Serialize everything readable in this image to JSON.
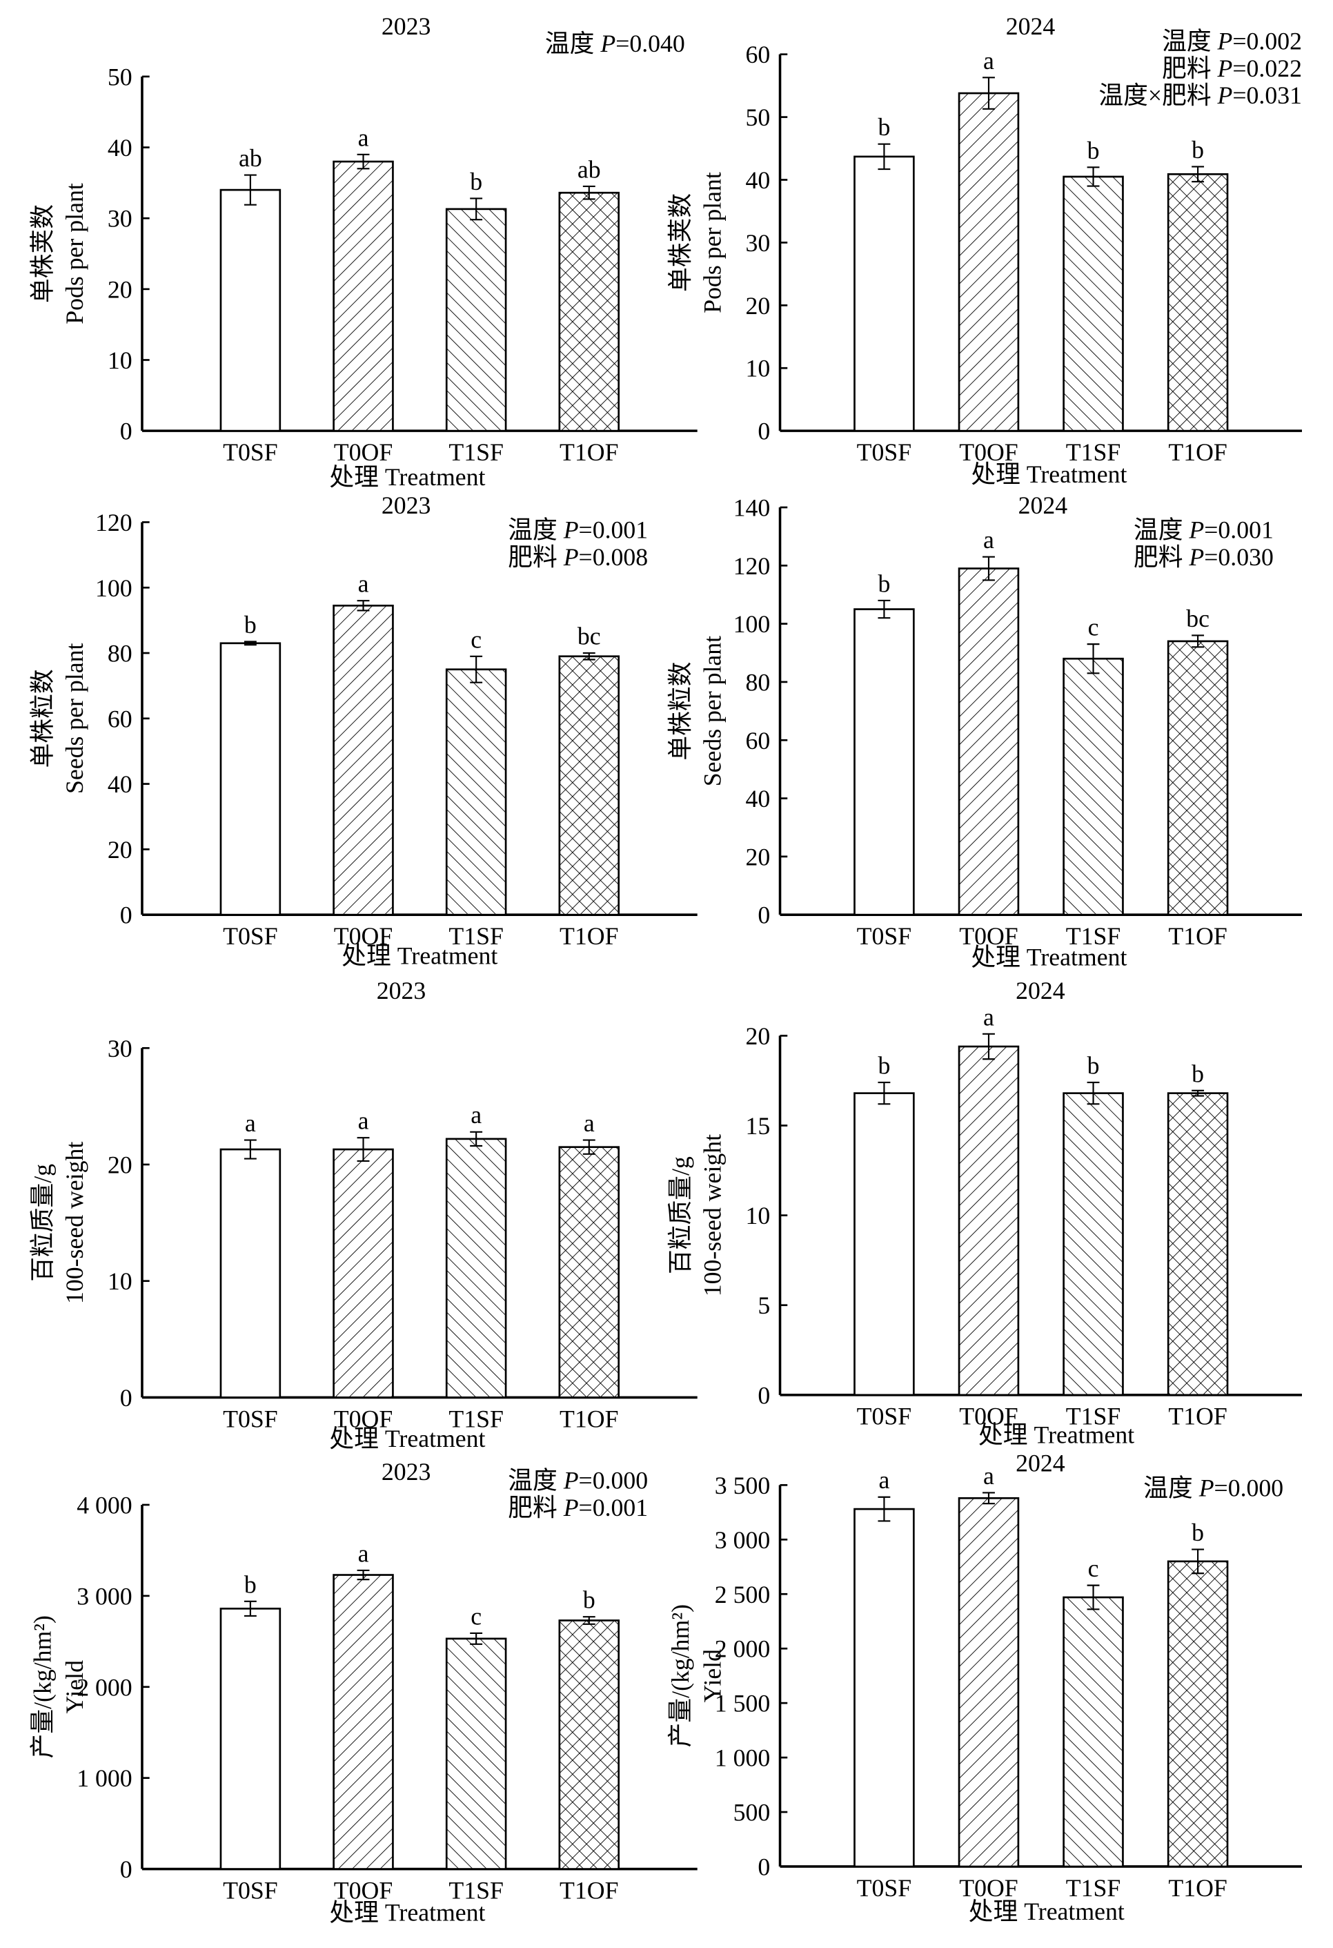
{
  "categories": [
    "T0SF",
    "T0OF",
    "T1SF",
    "T1OF"
  ],
  "xlabel": "处理 Treatment",
  "pattern_order": [
    "none",
    "forward-diagonal",
    "back-diagonal",
    "crosshatch"
  ],
  "colors": {
    "bar_fill": "#ffffff",
    "stroke": "#000000"
  },
  "chart_data": [
    {
      "type": "bar",
      "title": "2023",
      "ylabel": [
        "单株荚数",
        "Pods per plant"
      ],
      "ylim": [
        0,
        50
      ],
      "ticks": [
        0,
        10,
        20,
        30,
        40,
        50
      ],
      "tick_labels": [
        "0",
        "10",
        "20",
        "30",
        "40",
        "50"
      ],
      "values": [
        34.0,
        38.0,
        31.3,
        33.6
      ],
      "errors": [
        2.1,
        1.0,
        1.5,
        0.9
      ],
      "letters": [
        "ab",
        "a",
        "b",
        "ab"
      ],
      "annotations": [
        {
          "factor": "温度",
          "p": "0.040"
        }
      ]
    },
    {
      "type": "bar",
      "title": "2024",
      "ylabel": [
        "单株荚数",
        "Pods per plant"
      ],
      "ylim": [
        0,
        60
      ],
      "ticks": [
        0,
        10,
        20,
        30,
        40,
        50,
        60
      ],
      "tick_labels": [
        "0",
        "10",
        "20",
        "30",
        "40",
        "50",
        "60"
      ],
      "values": [
        43.7,
        53.8,
        40.5,
        40.9
      ],
      "errors": [
        2.0,
        2.5,
        1.5,
        1.2
      ],
      "letters": [
        "b",
        "a",
        "b",
        "b"
      ],
      "annotations": [
        {
          "factor": "温度",
          "p": "0.002"
        },
        {
          "factor": "肥料",
          "p": "0.022"
        },
        {
          "factor": "温度×肥料",
          "p": "0.031"
        }
      ]
    },
    {
      "type": "bar",
      "title": "2023",
      "ylabel": [
        "单株粒数",
        "Seeds per plant"
      ],
      "ylim": [
        0,
        120
      ],
      "ticks": [
        0,
        20,
        40,
        60,
        80,
        100,
        120
      ],
      "tick_labels": [
        "0",
        "20",
        "40",
        "60",
        "80",
        "100",
        "120"
      ],
      "values": [
        83.0,
        94.5,
        75.0,
        79.0
      ],
      "errors": [
        0.5,
        1.5,
        4.0,
        1.0
      ],
      "letters": [
        "b",
        "a",
        "c",
        "bc"
      ],
      "annotations": [
        {
          "factor": "温度",
          "p": "0.001"
        },
        {
          "factor": "肥料",
          "p": "0.008"
        }
      ]
    },
    {
      "type": "bar",
      "title": "2024",
      "ylabel": [
        "单株粒数",
        "Seeds per plant"
      ],
      "ylim": [
        0,
        140
      ],
      "ticks": [
        0,
        20,
        40,
        60,
        80,
        100,
        120,
        140
      ],
      "tick_labels": [
        "0",
        "20",
        "40",
        "60",
        "80",
        "100",
        "120",
        "140"
      ],
      "values": [
        105.0,
        119.0,
        88.0,
        94.0
      ],
      "errors": [
        3.0,
        4.0,
        5.0,
        2.0
      ],
      "letters": [
        "b",
        "a",
        "c",
        "bc"
      ],
      "annotations": [
        {
          "factor": "温度",
          "p": "0.001"
        },
        {
          "factor": "肥料",
          "p": "0.030"
        }
      ]
    },
    {
      "type": "bar",
      "title": "2023",
      "ylabel": [
        "百粒质量/g",
        "100-seed weight"
      ],
      "ylim": [
        0,
        30
      ],
      "ticks": [
        0,
        10,
        20,
        30
      ],
      "tick_labels": [
        "0",
        "10",
        "20",
        "30"
      ],
      "values": [
        21.3,
        21.3,
        22.2,
        21.5
      ],
      "errors": [
        0.8,
        1.0,
        0.6,
        0.6
      ],
      "letters": [
        "a",
        "a",
        "a",
        "a"
      ],
      "annotations": []
    },
    {
      "type": "bar",
      "title": "2024",
      "ylabel": [
        "百粒质量/g",
        "100-seed weight"
      ],
      "ylim": [
        0,
        20
      ],
      "ticks": [
        0,
        5,
        10,
        15,
        20
      ],
      "tick_labels": [
        "0",
        "5",
        "10",
        "15",
        "20"
      ],
      "values": [
        16.8,
        19.4,
        16.8,
        16.8
      ],
      "errors": [
        0.6,
        0.7,
        0.6,
        0.15
      ],
      "letters": [
        "b",
        "a",
        "b",
        "b"
      ],
      "annotations": []
    },
    {
      "type": "bar",
      "title": "2023",
      "ylabel": [
        "产量/(kg/hm²)",
        "Yield"
      ],
      "ylim": [
        0,
        4000
      ],
      "ticks": [
        0,
        1000,
        2000,
        3000,
        4000
      ],
      "tick_labels": [
        "0",
        "1 000",
        "2 000",
        "3 000",
        "4 000"
      ],
      "values": [
        2860,
        3230,
        2530,
        2730
      ],
      "errors": [
        80,
        50,
        60,
        40
      ],
      "letters": [
        "b",
        "a",
        "c",
        "b"
      ],
      "annotations": [
        {
          "factor": "温度",
          "p": "0.000"
        },
        {
          "factor": "肥料",
          "p": "0.001"
        }
      ]
    },
    {
      "type": "bar",
      "title": "2024",
      "ylabel": [
        "产量/(kg/hm²)",
        "Yield"
      ],
      "ylim": [
        0,
        3500
      ],
      "ticks": [
        0,
        500,
        1000,
        1500,
        2000,
        2500,
        3000,
        3500
      ],
      "tick_labels": [
        "0",
        "500",
        "1 000",
        "1 500",
        "2 000",
        "2 500",
        "3 000",
        "3 500"
      ],
      "values": [
        3280,
        3380,
        2470,
        2800
      ],
      "errors": [
        110,
        50,
        110,
        110
      ],
      "letters": [
        "a",
        "a",
        "c",
        "b"
      ],
      "annotations": [
        {
          "factor": "温度",
          "p": "0.000"
        }
      ]
    }
  ]
}
